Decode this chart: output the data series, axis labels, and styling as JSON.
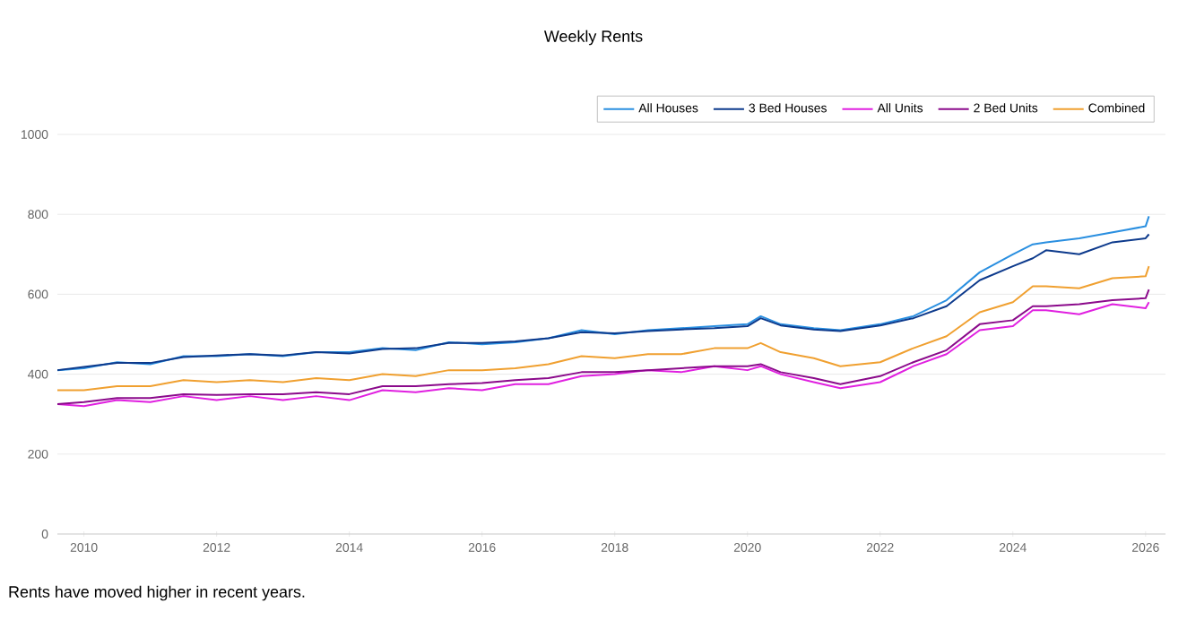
{
  "chart_data": {
    "type": "line",
    "title": "Weekly Rents",
    "annotations": [
      "Rents have moved higher in recent years."
    ],
    "xlim": [
      2009.6,
      2026.3
    ],
    "xticks": [
      2010,
      2012,
      2014,
      2016,
      2018,
      2020,
      2022,
      2024,
      2026
    ],
    "ylim": [
      0,
      1000
    ],
    "yticks": [
      0,
      200,
      400,
      600,
      800,
      1000
    ],
    "grid": "y",
    "legend": "top right",
    "x": [
      2009.6,
      2010,
      2010.5,
      2011,
      2011.5,
      2012,
      2012.5,
      2013,
      2013.5,
      2014,
      2014.5,
      2015,
      2015.5,
      2016,
      2016.5,
      2017,
      2017.5,
      2018,
      2018.5,
      2019,
      2019.5,
      2020,
      2020.2,
      2020.5,
      2021,
      2021.4,
      2022,
      2022.5,
      2023,
      2023.5,
      2024,
      2024.3,
      2024.5,
      2025,
      2025.5,
      2026,
      2026.05
    ],
    "series": [
      {
        "name": "All Houses",
        "color": "#2a8fe0",
        "values": [
          410,
          415,
          430,
          425,
          445,
          445,
          450,
          445,
          455,
          455,
          465,
          460,
          480,
          475,
          480,
          490,
          510,
          500,
          510,
          515,
          520,
          525,
          545,
          525,
          515,
          510,
          525,
          545,
          585,
          655,
          700,
          725,
          730,
          740,
          755,
          770,
          795
        ]
      },
      {
        "name": "3 Bed Houses",
        "color": "#0d3a8c",
        "values": [
          410,
          418,
          428,
          428,
          443,
          447,
          450,
          447,
          455,
          452,
          463,
          465,
          478,
          478,
          482,
          490,
          505,
          502,
          508,
          512,
          515,
          520,
          540,
          522,
          512,
          508,
          522,
          540,
          570,
          635,
          670,
          690,
          710,
          700,
          730,
          740,
          750
        ]
      },
      {
        "name": "All Units",
        "color": "#e020e0",
        "values": [
          325,
          320,
          335,
          330,
          345,
          335,
          345,
          335,
          345,
          335,
          360,
          355,
          365,
          360,
          375,
          375,
          395,
          400,
          410,
          405,
          420,
          410,
          420,
          400,
          380,
          365,
          380,
          420,
          450,
          510,
          520,
          560,
          560,
          550,
          575,
          565,
          580
        ]
      },
      {
        "name": "2 Bed Units",
        "color": "#8b0a8b",
        "values": [
          325,
          330,
          340,
          340,
          350,
          348,
          350,
          350,
          355,
          350,
          370,
          370,
          375,
          378,
          385,
          390,
          405,
          405,
          410,
          415,
          420,
          420,
          425,
          405,
          390,
          375,
          395,
          430,
          460,
          525,
          535,
          570,
          570,
          575,
          585,
          590,
          612
        ]
      },
      {
        "name": "Combined",
        "color": "#f0a030",
        "values": [
          360,
          360,
          370,
          370,
          385,
          380,
          385,
          380,
          390,
          385,
          400,
          395,
          410,
          410,
          415,
          425,
          445,
          440,
          450,
          450,
          465,
          465,
          478,
          455,
          440,
          420,
          430,
          465,
          495,
          555,
          580,
          620,
          620,
          615,
          640,
          645,
          670
        ]
      }
    ]
  }
}
